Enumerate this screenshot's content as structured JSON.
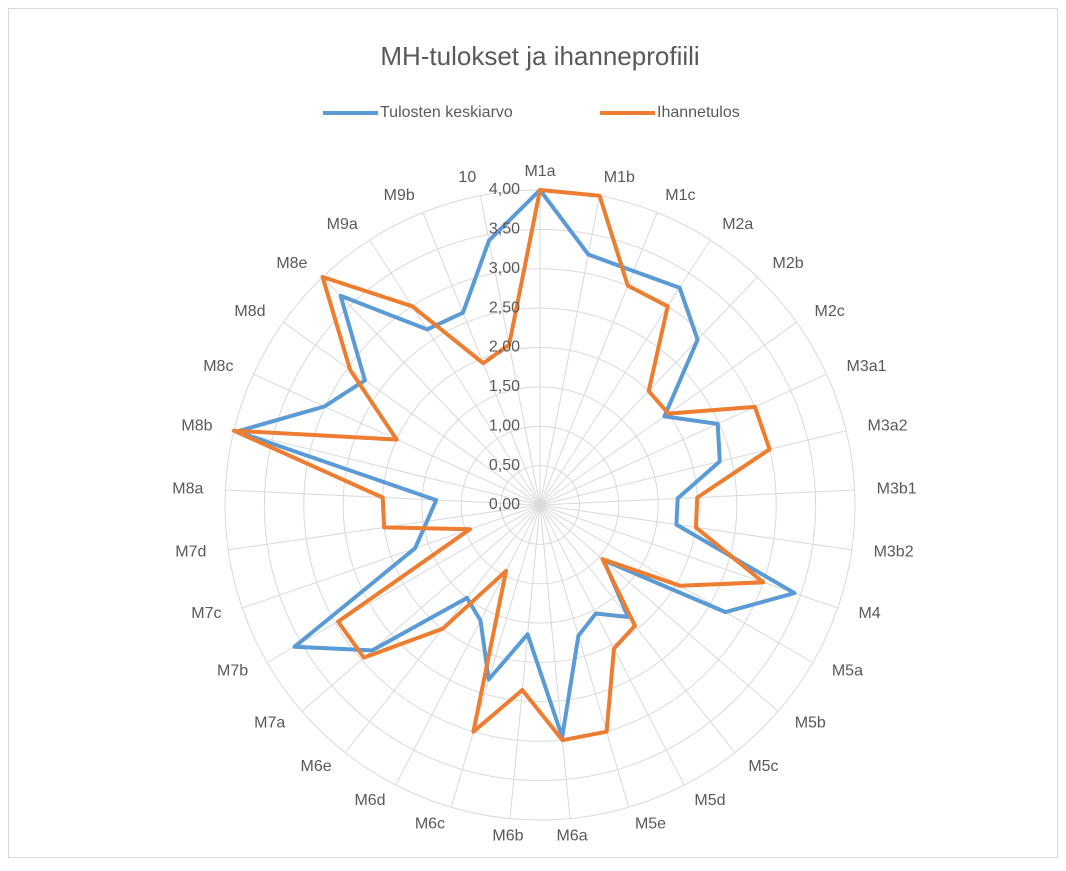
{
  "chart_data": {
    "type": "radar",
    "title": "MH-tulokset ja ihanneprofiili",
    "categories": [
      "M1a",
      "M1b",
      "M1c",
      "M2a",
      "M2b",
      "M2c",
      "M3a1",
      "M3a2",
      "M3b1",
      "M3b2",
      "M4",
      "M5a",
      "M5b",
      "M5c",
      "M5d",
      "M5e",
      "M6a",
      "M6b",
      "M6c",
      "M6d",
      "M6e",
      "M7a",
      "M7b",
      "M7c",
      "M7d",
      "M8a",
      "M8b",
      "M8c",
      "M8d",
      "M8e",
      "M9a",
      "M9b",
      "10"
    ],
    "series": [
      {
        "name": "Tulosten keskiarvo",
        "color": "#5b9bd5",
        "values": [
          4.0,
          3.24,
          3.2,
          3.28,
          2.9,
          1.94,
          2.48,
          2.35,
          1.75,
          1.75,
          3.42,
          2.72,
          1.07,
          1.81,
          1.55,
          1.73,
          2.96,
          1.65,
          2.31,
          1.65,
          1.5,
          2.82,
          3.6,
          1.68,
          1.45,
          1.32,
          3.96,
          3.01,
          2.73,
          3.67,
          2.65,
          2.63,
          3.42
        ]
      },
      {
        "name": "Ihannetulos",
        "color": "#ed7d31",
        "values": [
          4.0,
          4.0,
          3.0,
          3.0,
          2.0,
          2.0,
          3.0,
          3.0,
          2.0,
          2.0,
          3.0,
          2.05,
          1.05,
          1.95,
          2.05,
          3.0,
          3.0,
          2.36,
          3.0,
          0.94,
          2.0,
          2.96,
          2.96,
          0.94,
          2.0,
          2.0,
          4.0,
          2.0,
          2.96,
          4.0,
          3.0,
          1.94,
          2.07
        ]
      }
    ],
    "ylim": [
      0,
      4
    ],
    "yticks": [
      {
        "value": 0,
        "label": "0,00"
      },
      {
        "value": 0.5,
        "label": "0,50"
      },
      {
        "value": 1,
        "label": "1,00"
      },
      {
        "value": 1.5,
        "label": "1,50"
      },
      {
        "value": 2,
        "label": "2,00"
      },
      {
        "value": 2.5,
        "label": "2,50"
      },
      {
        "value": 3,
        "label": "3,00"
      },
      {
        "value": 3.5,
        "label": "3,50"
      },
      {
        "value": 4,
        "label": "4,00"
      }
    ],
    "grid": true,
    "legend": "top"
  }
}
